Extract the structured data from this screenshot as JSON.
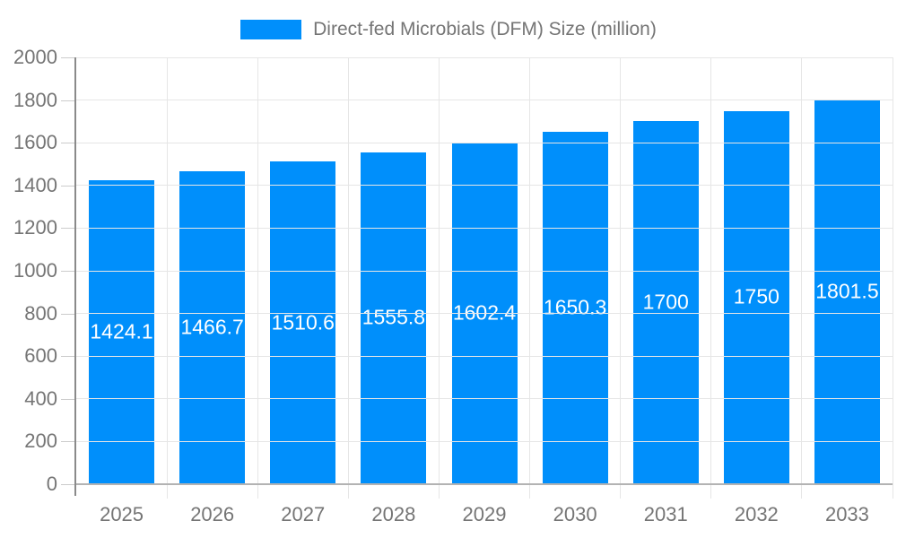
{
  "chart_data": {
    "type": "bar",
    "title": "Direct-fed Microbials (DFM) Size (million)",
    "legend_position": "top-center",
    "grid": true,
    "categories": [
      "2025",
      "2026",
      "2027",
      "2028",
      "2029",
      "2030",
      "2031",
      "2032",
      "2033"
    ],
    "series": [
      {
        "name": "Direct-fed Microbials (DFM) Size (million)",
        "values": [
          1424.1,
          1466.7,
          1510.6,
          1555.8,
          1602.4,
          1650.3,
          1700,
          1750,
          1801.5
        ]
      }
    ],
    "values": [
      1424.1,
      1466.7,
      1510.6,
      1555.8,
      1602.4,
      1650.3,
      1700,
      1750,
      1801.5
    ],
    "value_labels": [
      "1424.1",
      "1466.7",
      "1510.6",
      "1555.8",
      "1602.4",
      "1650.3",
      "1700",
      "1750",
      "1801.5"
    ],
    "xlabel": "",
    "ylabel": "",
    "ylim": [
      0,
      2000
    ],
    "ytick_step": 200,
    "ytick_labels": [
      "0",
      "200",
      "400",
      "600",
      "800",
      "1000",
      "1200",
      "1400",
      "1600",
      "1800",
      "2000"
    ],
    "colors": {
      "bar": "#008FFB",
      "bar_label": "#ffffff",
      "axis_text": "#757575",
      "grid_line": "#e6e6e6",
      "tick": "#cccccc",
      "axis_line": "#8a8a8a",
      "baseline": "#b3b3b3"
    }
  }
}
